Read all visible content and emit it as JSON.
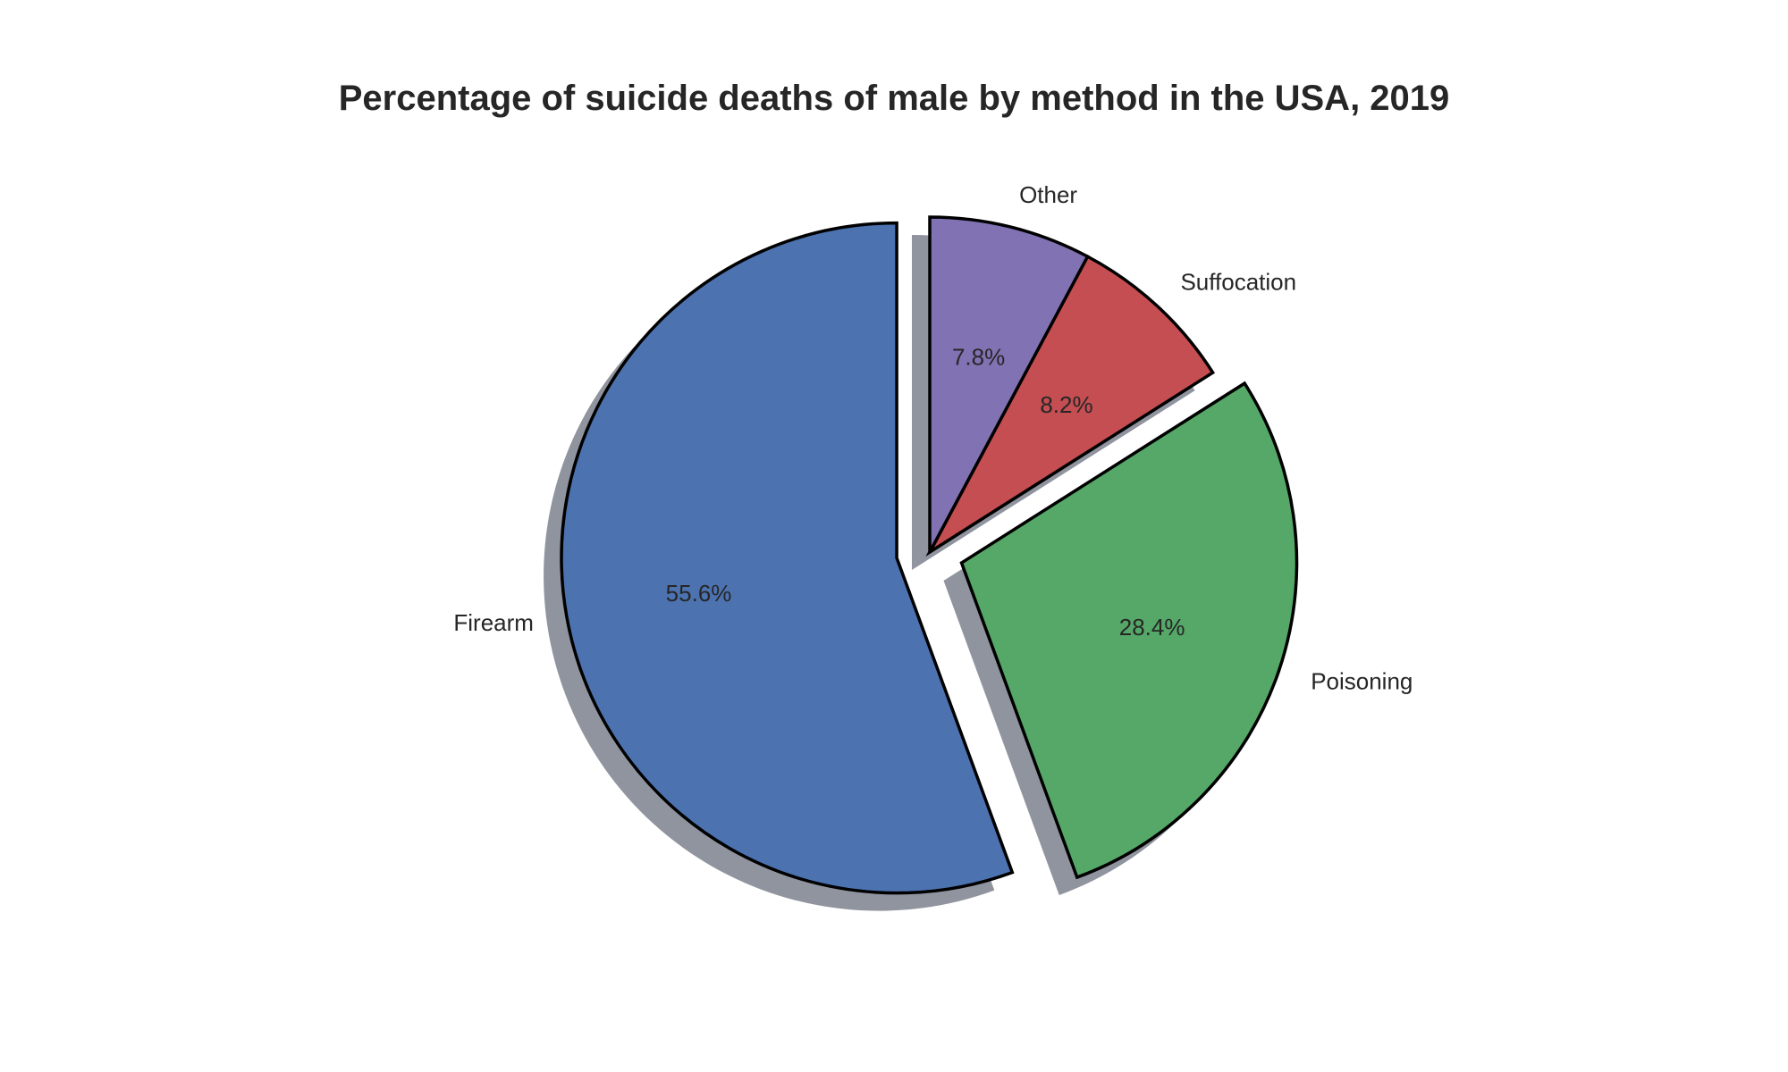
{
  "chart_data": {
    "type": "pie",
    "title": "Percentage of suicide deaths of male by method in the USA, 2019",
    "categories": [
      "Firearm",
      "Poisoning",
      "Suffocation",
      "Other"
    ],
    "values": [
      55.6,
      28.4,
      8.2,
      7.8
    ],
    "value_labels": [
      "55.6%",
      "28.4%",
      "8.2%",
      "7.8%"
    ],
    "colors": [
      "#4c72b0",
      "#55a868",
      "#c44e52",
      "#8172b3"
    ],
    "exploded": [
      "Firearm",
      "Poisoning"
    ],
    "start_angle_deg": 90,
    "direction": "counterclockwise",
    "shadow": true,
    "edge_color": "#000000",
    "legend": "none"
  }
}
